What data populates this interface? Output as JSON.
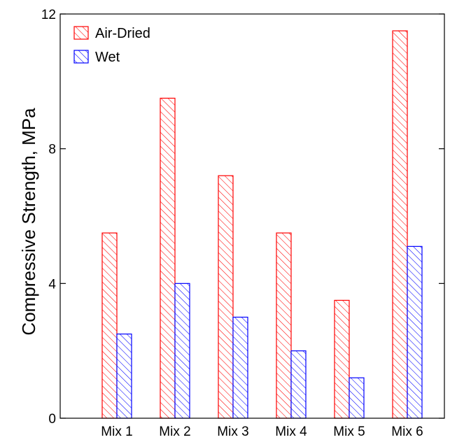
{
  "chart_data": {
    "type": "bar",
    "title": "",
    "xlabel": "",
    "ylabel": "Compressive Strength, MPa",
    "categories": [
      "Mix 1",
      "Mix 2",
      "Mix 3",
      "Mix 4",
      "Mix 5",
      "Mix 6"
    ],
    "ylim": [
      0,
      12
    ],
    "yticks": [
      "0",
      "4",
      "8",
      "12"
    ],
    "grid": false,
    "legend_position": "top-left",
    "series": [
      {
        "name": "Air-Dried",
        "color": "#ff0000",
        "pattern": "diagonal-hatch",
        "values": [
          5.5,
          9.5,
          7.2,
          5.5,
          3.5,
          11.5
        ]
      },
      {
        "name": "Wet",
        "color": "#0000ff",
        "pattern": "diagonal-hatch",
        "values": [
          2.5,
          4.0,
          3.0,
          2.0,
          1.2,
          5.1
        ]
      }
    ]
  }
}
